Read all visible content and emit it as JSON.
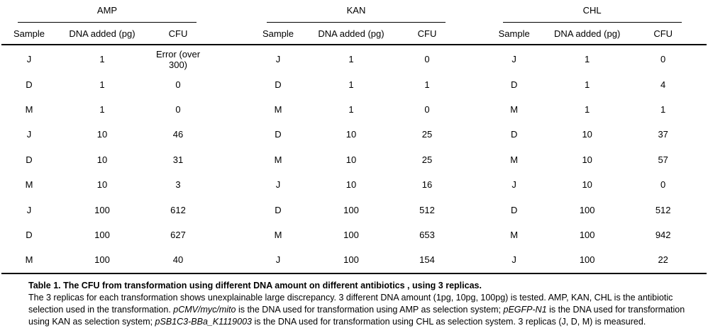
{
  "colors": {
    "background": "#ffffff",
    "text": "#000000",
    "rule": "#000000"
  },
  "table": {
    "groups": [
      {
        "title": "AMP",
        "columns": [
          "Sample",
          "DNA added (pg)",
          "CFU"
        ],
        "rows": [
          [
            "J",
            "1",
            "Error (over 300)"
          ],
          [
            "D",
            "1",
            "0"
          ],
          [
            "M",
            "1",
            "0"
          ],
          [
            "J",
            "10",
            "46"
          ],
          [
            "D",
            "10",
            "31"
          ],
          [
            "M",
            "10",
            "3"
          ],
          [
            "J",
            "100",
            "612"
          ],
          [
            "D",
            "100",
            "627"
          ],
          [
            "M",
            "100",
            "40"
          ]
        ]
      },
      {
        "title": "KAN",
        "columns": [
          "Sample",
          "DNA added (pg)",
          "CFU"
        ],
        "rows": [
          [
            "J",
            "1",
            "0"
          ],
          [
            "D",
            "1",
            "1"
          ],
          [
            "M",
            "1",
            "0"
          ],
          [
            "D",
            "10",
            "25"
          ],
          [
            "M",
            "10",
            "25"
          ],
          [
            "J",
            "10",
            "16"
          ],
          [
            "D",
            "100",
            "512"
          ],
          [
            "M",
            "100",
            "653"
          ],
          [
            "J",
            "100",
            "154"
          ]
        ]
      },
      {
        "title": "CHL",
        "columns": [
          "Sample",
          "DNA added (pg)",
          "CFU"
        ],
        "rows": [
          [
            "J",
            "1",
            "0"
          ],
          [
            "D",
            "1",
            "4"
          ],
          [
            "M",
            "1",
            "1"
          ],
          [
            "D",
            "10",
            "37"
          ],
          [
            "M",
            "10",
            "57"
          ],
          [
            "J",
            "10",
            "0"
          ],
          [
            "D",
            "100",
            "512"
          ],
          [
            "M",
            "100",
            "942"
          ],
          [
            "J",
            "100",
            "22"
          ]
        ]
      }
    ]
  },
  "caption": {
    "title": "Table 1. The CFU from transformation using different DNA amount  on different antibiotics , using 3 replicas.",
    "segments": [
      {
        "text": "The 3 replicas for each transformation shows unexplainable large discrepancy. 3 different DNA amount (1pg, 10pg, 100pg) is tested. AMP, KAN, CHL is the antibiotic selection used in the transformation. ",
        "italic": false
      },
      {
        "text": "pCMV/myc/mito",
        "italic": true
      },
      {
        "text": " is the DNA used for transformation using AMP as selection system; ",
        "italic": false
      },
      {
        "text": "pEGFP-N1",
        "italic": true
      },
      {
        "text": " is the DNA used for transformation using KAN as selection system; ",
        "italic": false
      },
      {
        "text": "pSB1C3-BBa_K1119003",
        "italic": true
      },
      {
        "text": " is the DNA used for transformation using CHL as selection system. 3 replicas (J, D, M) is measured.",
        "italic": false
      }
    ]
  }
}
